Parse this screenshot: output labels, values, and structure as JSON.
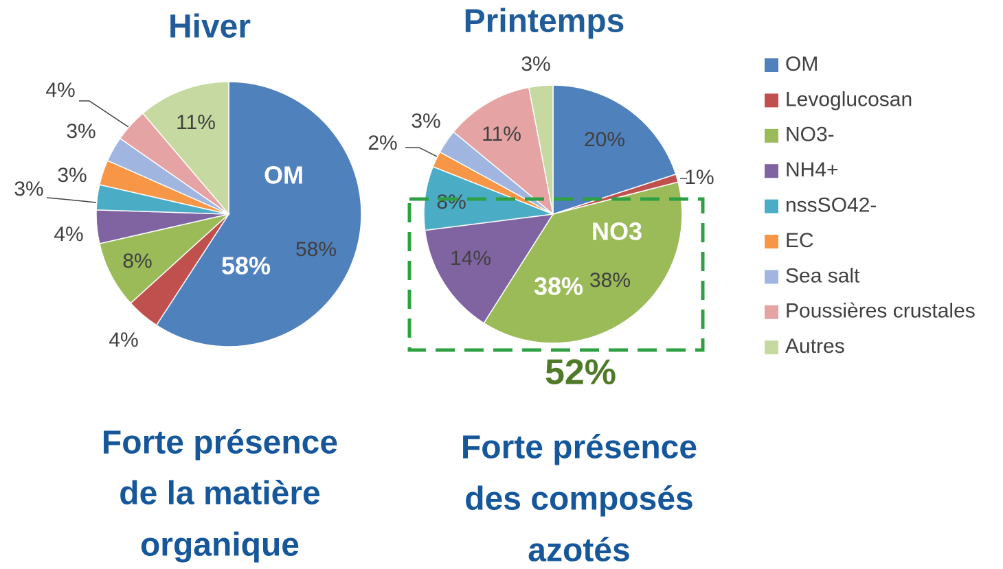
{
  "chart_data": [
    {
      "type": "pie",
      "title": "Hiver",
      "values": [
        58,
        4,
        8,
        4,
        3,
        3,
        3,
        4,
        11
      ],
      "value_labels": [
        "58%",
        "4%",
        "8%",
        "4%",
        "3%",
        "3%",
        "3%",
        "4%",
        "11%"
      ],
      "annotations": [
        "OM",
        "58%"
      ]
    },
    {
      "type": "pie",
      "title": "Printemps",
      "values": [
        20,
        1,
        38,
        14,
        8,
        2,
        3,
        11,
        3
      ],
      "value_labels": [
        "20%",
        "1%",
        "38%",
        "14%",
        "8%",
        "2%",
        "3%",
        "11%",
        "3%"
      ],
      "annotations": [
        "NO3",
        "38%",
        "52%"
      ]
    }
  ],
  "legend": {
    "categories": [
      "OM",
      "Levoglucosan",
      "NO3-",
      "NH4+",
      "nssSO42-",
      "EC",
      "Sea salt",
      "Poussières crustales",
      "Autres"
    ],
    "colors": [
      "#4f81bd",
      "#c0504d",
      "#9bbb59",
      "#8064a2",
      "#4bacc6",
      "#f79646",
      "#a0b5e0",
      "#e6a3a3",
      "#c5d9a0"
    ]
  },
  "captions": [
    [
      "Forte présence",
      "de la matière",
      "organique"
    ],
    [
      "Forte présence",
      "des composés",
      "azotés"
    ]
  ]
}
